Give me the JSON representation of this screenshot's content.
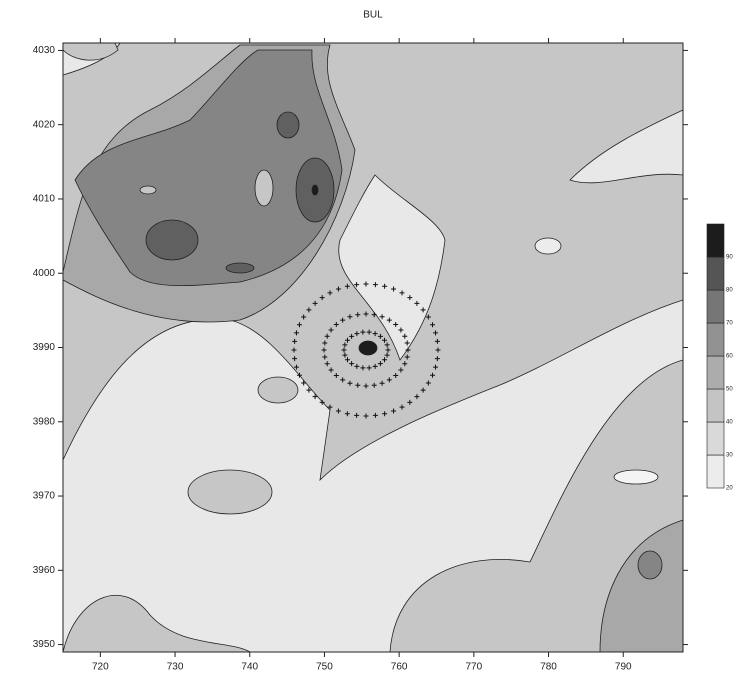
{
  "chart_data": {
    "type": "contour",
    "title": "BUL",
    "xlim": [
      715,
      798
    ],
    "xticks": [
      720,
      730,
      740,
      750,
      760,
      770,
      780,
      790
    ],
    "ylim": [
      3949,
      4031
    ],
    "yticks": [
      3950,
      3960,
      3970,
      3980,
      3990,
      4000,
      4010,
      4020,
      4030
    ],
    "colorbar": {
      "levels": [
        20,
        30,
        40,
        50,
        60,
        70,
        80,
        90
      ],
      "colors": [
        "#ececec",
        "#d9d9d9",
        "#c4c4c4",
        "#acacac",
        "#929292",
        "#767676",
        "#555555",
        "#1c1c1c"
      ]
    }
  }
}
